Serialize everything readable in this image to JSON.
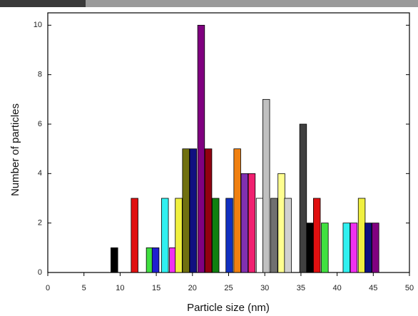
{
  "chart_data": {
    "type": "bar",
    "x_label": "Particle size (nm)",
    "y_label": "Number of particles",
    "x": [
      9.2,
      12,
      14.1,
      14.9,
      16.2,
      17.3,
      18.1,
      19.1,
      20.1,
      21.2,
      22.2,
      23.2,
      25.1,
      26.2,
      27.2,
      28.2,
      29.3,
      30.2,
      31.3,
      32.3,
      33.2,
      35.3,
      36.3,
      37.2,
      38.3,
      41.3,
      42.3,
      43.4,
      44.3,
      45.3
    ],
    "values": [
      1,
      3,
      1,
      1,
      3,
      1,
      3,
      5,
      5,
      10,
      5,
      3,
      3,
      5,
      4,
      4,
      3,
      7,
      3,
      4,
      3,
      6,
      2,
      3,
      2,
      2,
      2,
      3,
      2,
      2
    ],
    "colors": [
      "#000000",
      "#e01010",
      "#40e040",
      "#2020d0",
      "#30f0f0",
      "#f030f0",
      "#f0f040",
      "#707010",
      "#101080",
      "#800080",
      "#900010",
      "#108010",
      "#1030c0",
      "#f08010",
      "#8030b0",
      "#f02070",
      "#ffffff",
      "#c0c0c0",
      "#707070",
      "#ffff90",
      "#d0d0d0",
      "#404040",
      "#000000",
      "#e01010",
      "#40e040",
      "#30f0f0",
      "#f030f0",
      "#f0f040",
      "#101080",
      "#800080"
    ],
    "xlim": [
      0,
      50
    ],
    "xticks": [
      0,
      5,
      10,
      15,
      20,
      25,
      30,
      35,
      40,
      45,
      50
    ],
    "ylim": [
      0,
      10.5
    ],
    "yticks": [
      0,
      2,
      4,
      6,
      8,
      10
    ]
  }
}
